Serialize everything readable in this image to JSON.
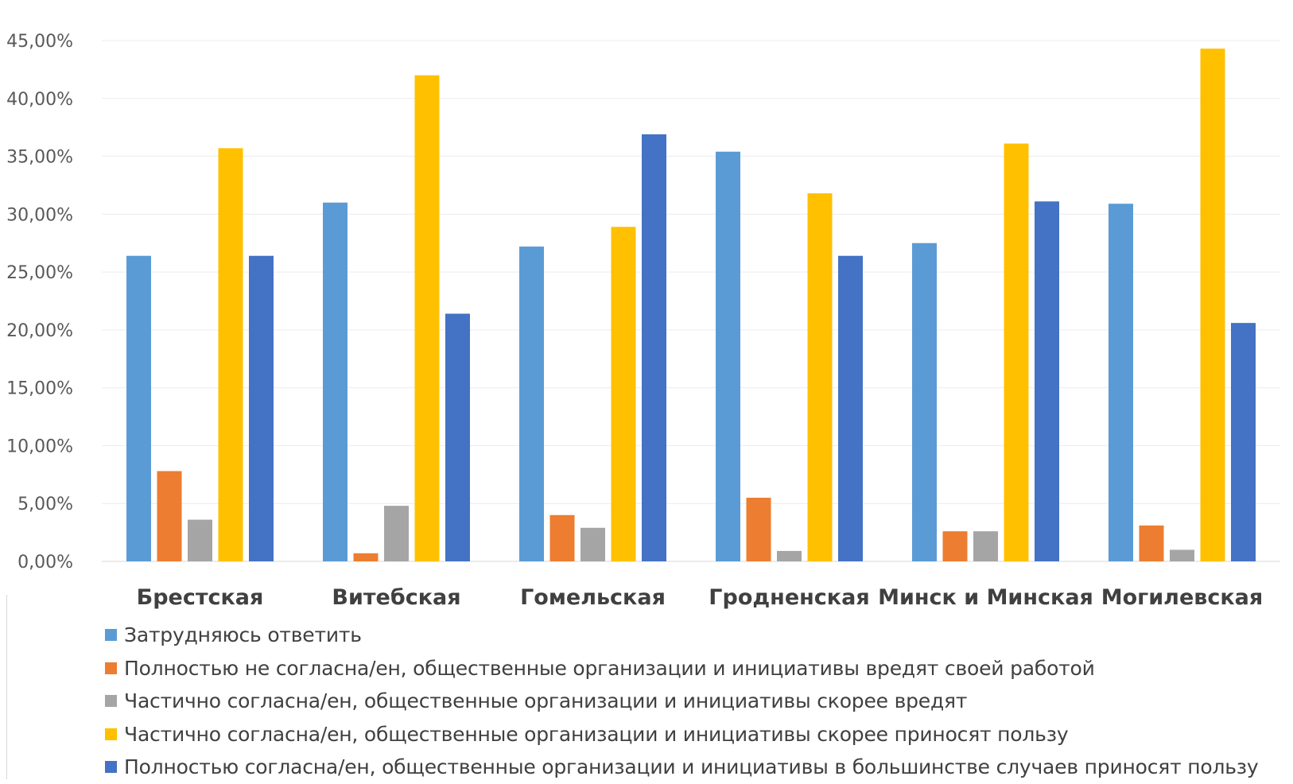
{
  "chart_data": {
    "type": "bar",
    "categories": [
      "Брестская",
      "Витебская",
      "Гомельская",
      "Гродненская",
      "Минск и Минская",
      "Могилевская"
    ],
    "series": [
      {
        "name": "Затрудняюсь ответить",
        "color": "#5b9bd5",
        "values": [
          26.4,
          31.0,
          27.2,
          35.4,
          27.5,
          30.9
        ]
      },
      {
        "name": "Полностью не согласна/ен, общественные организации и инициативы вредят своей работой",
        "color": "#ed7d31",
        "values": [
          7.8,
          0.7,
          4.0,
          5.5,
          2.6,
          3.1
        ]
      },
      {
        "name": "Частично согласна/ен, общественные организации и инициативы скорее вредят",
        "color": "#a5a5a5",
        "values": [
          3.6,
          4.8,
          2.9,
          0.9,
          2.6,
          1.0
        ]
      },
      {
        "name": "Частично согласна/ен, общественные организации и инициативы скорее приносят пользу",
        "color": "#ffc000",
        "values": [
          35.7,
          42.0,
          28.9,
          31.8,
          36.1,
          44.3
        ]
      },
      {
        "name": "Полностью согласна/ен, общественные организации и инициативы в большинстве случаев приносят пользу",
        "color": "#4472c4",
        "values": [
          26.4,
          21.4,
          36.9,
          26.4,
          31.1,
          20.6
        ]
      }
    ],
    "y_ticks": [
      "0,00%",
      "5,00%",
      "10,00%",
      "15,00%",
      "20,00%",
      "25,00%",
      "30,00%",
      "35,00%",
      "40,00%",
      "45,00%"
    ],
    "ylim": [
      0,
      45
    ],
    "grid": true,
    "legend_position": "bottom-left"
  }
}
